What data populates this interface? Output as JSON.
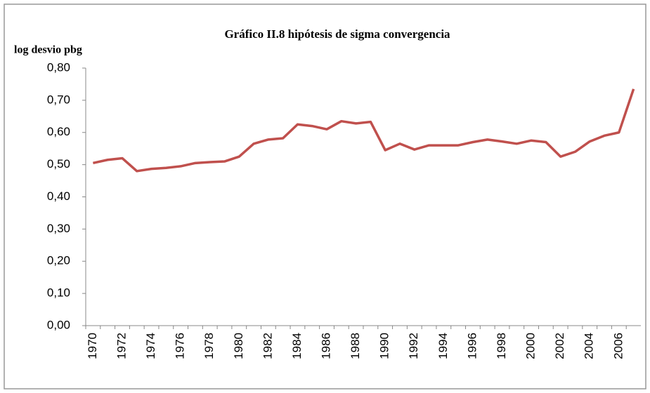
{
  "chart_data": {
    "type": "line",
    "title": "Gráfico II.8 hipótesis de sigma convergencia",
    "y_label": "log desvio pbg",
    "categories": [
      "1970",
      null,
      "1972",
      null,
      "1974",
      null,
      "1976",
      null,
      "1978",
      null,
      "1980",
      null,
      "1982",
      null,
      "1984",
      null,
      "1986",
      null,
      "1988",
      null,
      "1990",
      null,
      "1992",
      null,
      "1994",
      null,
      "1996",
      null,
      "1998",
      null,
      "2000",
      null,
      "2002",
      null,
      "2004",
      null,
      "2006",
      null
    ],
    "values": [
      0.505,
      0.515,
      0.52,
      0.48,
      0.487,
      0.49,
      0.495,
      0.505,
      0.508,
      0.51,
      0.525,
      0.565,
      0.578,
      0.582,
      0.625,
      0.62,
      0.61,
      0.635,
      0.628,
      0.633,
      0.545,
      0.565,
      0.547,
      0.56,
      0.56,
      0.56,
      0.57,
      0.578,
      0.572,
      0.565,
      0.575,
      0.57,
      0.525,
      0.54,
      0.572,
      0.59,
      0.6,
      0.735
    ],
    "color": "#c0504d",
    "ylim": [
      0,
      0.8
    ],
    "yticks": [
      {
        "value": 0,
        "label": "0,00"
      },
      {
        "value": 0.1,
        "label": "0,10"
      },
      {
        "value": 0.2,
        "label": "0,20"
      },
      {
        "value": 0.3,
        "label": "0,30"
      },
      {
        "value": 0.4,
        "label": "0,40"
      },
      {
        "value": 0.5,
        "label": "0,50"
      },
      {
        "value": 0.6,
        "label": "0,60"
      },
      {
        "value": 0.7,
        "label": "0,70"
      },
      {
        "value": 0.8,
        "label": "0,80"
      }
    ],
    "grid": false
  }
}
